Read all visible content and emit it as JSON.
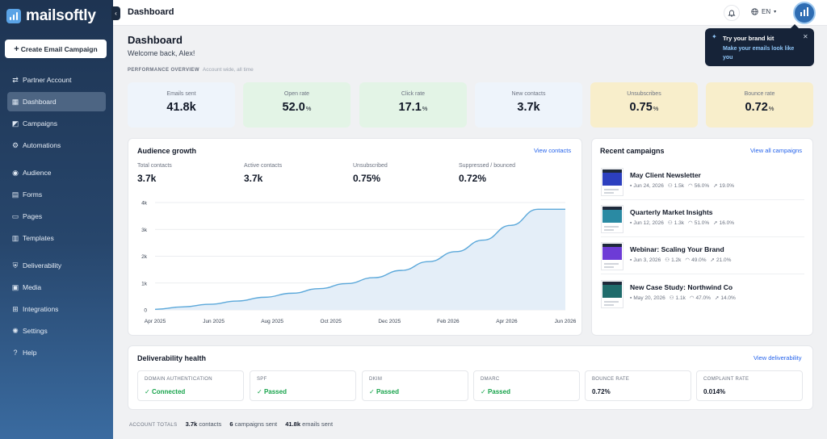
{
  "app": {
    "name": "mailsoftly"
  },
  "sidebar": {
    "create_label": "Create Email Campaign",
    "items": [
      {
        "label": "Partner Account",
        "icon": "handshake-icon"
      },
      {
        "label": "Dashboard",
        "icon": "dashboard-icon",
        "active": true
      },
      {
        "label": "Campaigns",
        "icon": "megaphone-icon"
      },
      {
        "label": "Automations",
        "icon": "automation-icon"
      },
      {
        "label": "Audience",
        "icon": "users-icon"
      },
      {
        "label": "Forms",
        "icon": "form-icon"
      },
      {
        "label": "Pages",
        "icon": "pages-icon"
      },
      {
        "label": "Templates",
        "icon": "template-icon"
      },
      {
        "label": "Deliverability",
        "icon": "shield-icon"
      },
      {
        "label": "Media",
        "icon": "image-icon"
      },
      {
        "label": "Integrations",
        "icon": "integrations-icon"
      },
      {
        "label": "Settings",
        "icon": "gear-icon"
      },
      {
        "label": "Help",
        "icon": "help-icon"
      }
    ]
  },
  "topbar": {
    "title": "Dashboard",
    "language": "EN"
  },
  "tooltip": {
    "title": "Try your brand kit",
    "subtitle": "Make your emails look like you"
  },
  "header": {
    "title": "Dashboard",
    "welcome": "Welcome back, Alex!",
    "section_title": "PERFORMANCE OVERVIEW",
    "section_sub": "Account wide, all time"
  },
  "kpis": [
    {
      "label": "Emails sent",
      "value": "41.8k",
      "unit": "",
      "color": "#eef4fb"
    },
    {
      "label": "Open rate",
      "value": "52.0",
      "unit": "%",
      "color": "#e3f4e6"
    },
    {
      "label": "Click rate",
      "value": "17.1",
      "unit": "%",
      "color": "#e3f4e6"
    },
    {
      "label": "New contacts",
      "value": "3.7k",
      "unit": "",
      "color": "#eef4fb"
    },
    {
      "label": "Unsubscribes",
      "value": "0.75",
      "unit": "%",
      "color": "#f8eecb"
    },
    {
      "label": "Bounce rate",
      "value": "0.72",
      "unit": "%",
      "color": "#f8eecb"
    }
  ],
  "audience": {
    "title": "Audience growth",
    "link": "View contacts",
    "stats": [
      {
        "label": "Total contacts",
        "value": "3.7k"
      },
      {
        "label": "Active contacts",
        "value": "3.7k"
      },
      {
        "label": "Unsubscribed",
        "value": "0.75%"
      },
      {
        "label": "Suppressed / bounced",
        "value": "0.72%"
      }
    ]
  },
  "chart_data": {
    "type": "area",
    "title": "",
    "xlabel": "",
    "ylabel": "",
    "ylim": [
      0,
      4000
    ],
    "y_ticks": [
      "0",
      "1k",
      "2k",
      "3k",
      "4k"
    ],
    "x_ticks": [
      "Apr 2025",
      "Jun 2025",
      "Aug 2025",
      "Oct 2025",
      "Dec 2025",
      "Feb 2026",
      "Apr 2026",
      "Jun 2026"
    ],
    "x": [
      "Apr 2025",
      "May 2025",
      "Jun 2025",
      "Jul 2025",
      "Aug 2025",
      "Sep 2025",
      "Oct 2025",
      "Nov 2025",
      "Dec 2025",
      "Jan 2026",
      "Feb 2026",
      "Mar 2026",
      "Apr 2026",
      "Apr 2026b",
      "May 2026",
      "Jun 2026"
    ],
    "series": [
      {
        "values": [
          20,
          110,
          210,
          330,
          470,
          620,
          790,
          980,
          1200,
          1470,
          1800,
          2170,
          2600,
          3150,
          3750,
          3750
        ]
      }
    ],
    "grid": true,
    "color": "#5ba8da"
  },
  "recent": {
    "title": "Recent campaigns",
    "link": "View all campaigns",
    "items": [
      {
        "name": "May Client Newsletter",
        "date": "Jun 24, 2026",
        "recipients": "1.5k",
        "open": "56.0%",
        "click": "19.0%",
        "accent": "#2c3fbf"
      },
      {
        "name": "Quarterly Market Insights",
        "date": "Jun 12, 2026",
        "recipients": "1.3k",
        "open": "51.0%",
        "click": "16.0%",
        "accent": "#2a8aa3"
      },
      {
        "name": "Webinar: Scaling Your Brand",
        "date": "Jun 3, 2026",
        "recipients": "1.2k",
        "open": "49.0%",
        "click": "21.0%",
        "accent": "#6d3bd6"
      },
      {
        "name": "New Case Study: Northwind Co",
        "date": "May 20, 2026",
        "recipients": "1.1k",
        "open": "47.0%",
        "click": "14.0%",
        "accent": "#1f6b6b"
      }
    ]
  },
  "deliverability": {
    "title": "Deliverability health",
    "link": "View deliverability",
    "items": [
      {
        "label": "DOMAIN AUTHENTICATION",
        "value": "Connected",
        "ok": true
      },
      {
        "label": "SPF",
        "value": "Passed",
        "ok": true
      },
      {
        "label": "DKIM",
        "value": "Passed",
        "ok": true
      },
      {
        "label": "DMARC",
        "value": "Passed",
        "ok": true
      },
      {
        "label": "BOUNCE RATE",
        "value": "0.72%",
        "ok": false
      },
      {
        "label": "COMPLAINT RATE",
        "value": "0.014%",
        "ok": false
      }
    ]
  },
  "totals": {
    "label": "ACCOUNT TOTALS",
    "contacts_value": "3.7k",
    "contacts_label": "contacts",
    "campaigns_value": "6",
    "campaigns_label": "campaigns sent",
    "emails_value": "41.8k",
    "emails_label": "emails sent"
  }
}
